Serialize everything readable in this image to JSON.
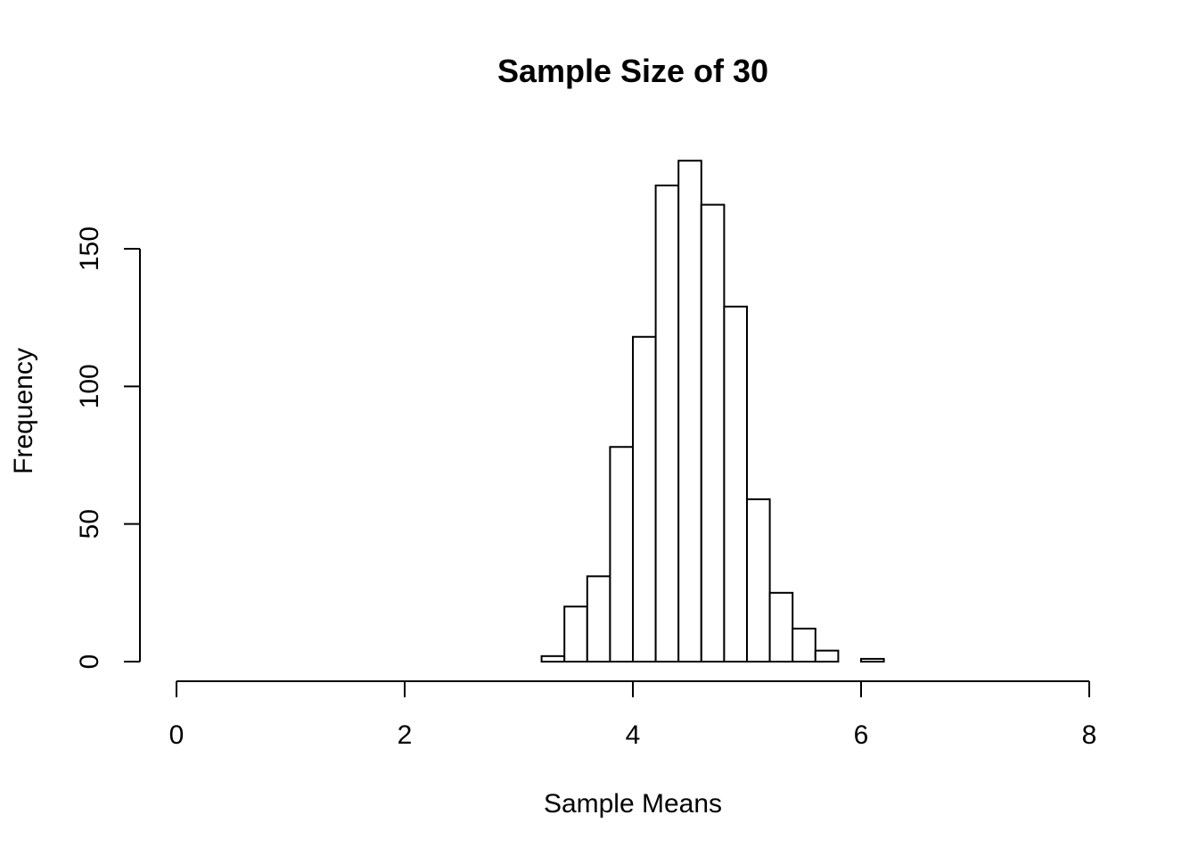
{
  "chart_data": {
    "type": "bar",
    "title": "Sample Size of 30",
    "xlabel": "Sample Means",
    "ylabel": "Frequency",
    "xlim": [
      0,
      8
    ],
    "ylim": [
      0,
      183
    ],
    "x_ticks": [
      0,
      2,
      4,
      6,
      8
    ],
    "y_ticks": [
      0,
      50,
      100,
      150
    ],
    "grid": false,
    "bins": [
      {
        "x0": 3.2,
        "x1": 3.4,
        "count": 2
      },
      {
        "x0": 3.4,
        "x1": 3.6,
        "count": 20
      },
      {
        "x0": 3.6,
        "x1": 3.8,
        "count": 31
      },
      {
        "x0": 3.8,
        "x1": 4.0,
        "count": 78
      },
      {
        "x0": 4.0,
        "x1": 4.2,
        "count": 118
      },
      {
        "x0": 4.2,
        "x1": 4.4,
        "count": 173
      },
      {
        "x0": 4.4,
        "x1": 4.6,
        "count": 182
      },
      {
        "x0": 4.6,
        "x1": 4.8,
        "count": 166
      },
      {
        "x0": 4.8,
        "x1": 5.0,
        "count": 129
      },
      {
        "x0": 5.0,
        "x1": 5.2,
        "count": 59
      },
      {
        "x0": 5.2,
        "x1": 5.4,
        "count": 25
      },
      {
        "x0": 5.4,
        "x1": 5.6,
        "count": 12
      },
      {
        "x0": 5.6,
        "x1": 5.8,
        "count": 4
      },
      {
        "x0": 5.8,
        "x1": 6.0,
        "count": 0
      },
      {
        "x0": 6.0,
        "x1": 6.2,
        "count": 1
      }
    ]
  }
}
